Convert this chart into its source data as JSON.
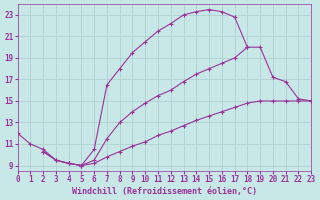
{
  "background_color": "#c8e8e8",
  "grid_color": "#aacccc",
  "line_color": "#993399",
  "marker": "+",
  "xlim": [
    0,
    23
  ],
  "ylim": [
    8.5,
    24
  ],
  "xticks": [
    0,
    1,
    2,
    3,
    4,
    5,
    6,
    7,
    8,
    9,
    10,
    11,
    12,
    13,
    14,
    15,
    16,
    17,
    18,
    19,
    20,
    21,
    22,
    23
  ],
  "yticks": [
    9,
    11,
    13,
    15,
    17,
    19,
    21,
    23
  ],
  "xlabel": "Windchill (Refroidissement éolien,°C)",
  "xlabel_fontsize": 6.0,
  "tick_fontsize": 5.5,
  "line1_x": [
    0,
    1,
    2,
    3,
    4,
    5,
    6,
    7,
    8,
    9,
    10,
    11,
    12,
    13,
    14,
    15,
    16,
    17,
    18
  ],
  "line1_y": [
    12.0,
    11.0,
    10.5,
    9.5,
    9.2,
    9.0,
    10.5,
    16.5,
    18.0,
    19.5,
    20.5,
    21.5,
    22.2,
    23.0,
    23.3,
    23.5,
    23.3,
    22.8,
    20.0
  ],
  "line2_x": [
    2,
    3,
    4,
    5,
    6,
    7,
    8,
    9,
    10,
    11,
    12,
    13,
    14,
    15,
    16,
    17,
    18,
    19,
    20,
    21,
    22,
    23
  ],
  "line2_y": [
    10.3,
    9.5,
    9.2,
    9.0,
    9.5,
    11.5,
    13.0,
    14.0,
    14.8,
    15.5,
    16.0,
    16.8,
    17.5,
    18.0,
    18.5,
    19.0,
    20.0,
    20.0,
    17.2,
    16.8,
    15.2,
    15.0
  ],
  "line3_x": [
    2,
    3,
    4,
    5,
    6,
    7,
    8,
    9,
    10,
    11,
    12,
    13,
    14,
    15,
    16,
    17,
    18,
    19,
    20,
    21,
    22,
    23
  ],
  "line3_y": [
    10.3,
    9.5,
    9.2,
    9.0,
    9.2,
    9.8,
    10.3,
    10.8,
    11.2,
    11.8,
    12.2,
    12.7,
    13.2,
    13.6,
    14.0,
    14.4,
    14.8,
    15.0,
    15.0,
    15.0,
    15.0,
    15.0
  ]
}
